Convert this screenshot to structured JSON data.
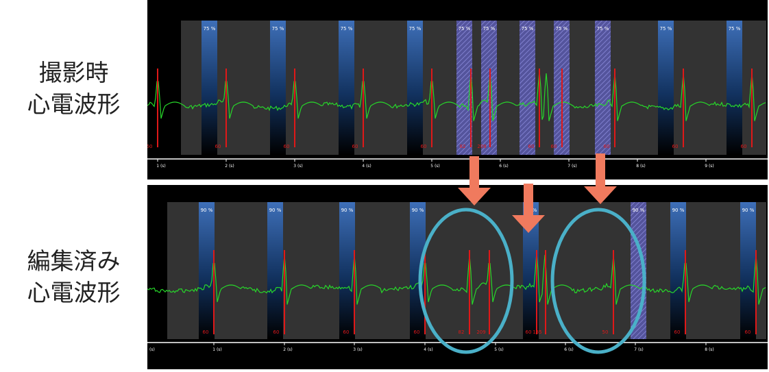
{
  "labels": {
    "top": [
      "撮影時",
      "心電波形"
    ],
    "bottom": [
      "編集済み",
      "心電波形"
    ]
  },
  "axis_unit": "(s)",
  "colors": {
    "ecg": "#27d82a",
    "r_marker": "#e01818",
    "highlight": "#5f5fbf",
    "window": "#1f4f96",
    "arrow": "#f07a5e",
    "circle": "#4ab0c8"
  },
  "top": {
    "ticks": [
      "1",
      "2",
      "3",
      "4",
      "5",
      "6",
      "7",
      "8",
      "9"
    ],
    "windows": [
      {
        "pct": "75 %",
        "highlight": false
      },
      {
        "pct": "75 %",
        "highlight": false
      },
      {
        "pct": "75 %",
        "highlight": false
      },
      {
        "pct": "75 %",
        "highlight": false
      },
      {
        "pct": "75 %",
        "highlight": true
      },
      {
        "pct": "75 %",
        "highlight": true
      },
      {
        "pct": "75 %",
        "highlight": true
      },
      {
        "pct": "75 %",
        "highlight": true
      },
      {
        "pct": "75 %",
        "highlight": true
      },
      {
        "pct": "75 %",
        "highlight": false
      },
      {
        "pct": "75 %",
        "highlight": false
      }
    ],
    "hr": [
      "60",
      "60",
      "60",
      "60",
      "60",
      "82",
      "209",
      "60",
      "60",
      "60",
      "60",
      "60"
    ]
  },
  "bottom": {
    "ticks": [
      "1",
      "2",
      "3",
      "4",
      "5",
      "6",
      "7",
      "8",
      "9"
    ],
    "windows": [
      {
        "pct": "90 %",
        "highlight": false
      },
      {
        "pct": "90 %",
        "highlight": false
      },
      {
        "pct": "90 %",
        "highlight": false
      },
      {
        "pct": "90 %",
        "highlight": false
      },
      {
        "pct": "90 %",
        "highlight": false
      },
      {
        "pct": "90 %",
        "highlight": true
      },
      {
        "pct": "90 %",
        "highlight": false
      },
      {
        "pct": "90 %",
        "highlight": false
      },
      {
        "pct": "90 %",
        "highlight": false
      }
    ],
    "hr": [
      "60",
      "60",
      "60",
      "60",
      "82",
      "209",
      "60",
      "135",
      "50",
      "60",
      "60"
    ]
  }
}
